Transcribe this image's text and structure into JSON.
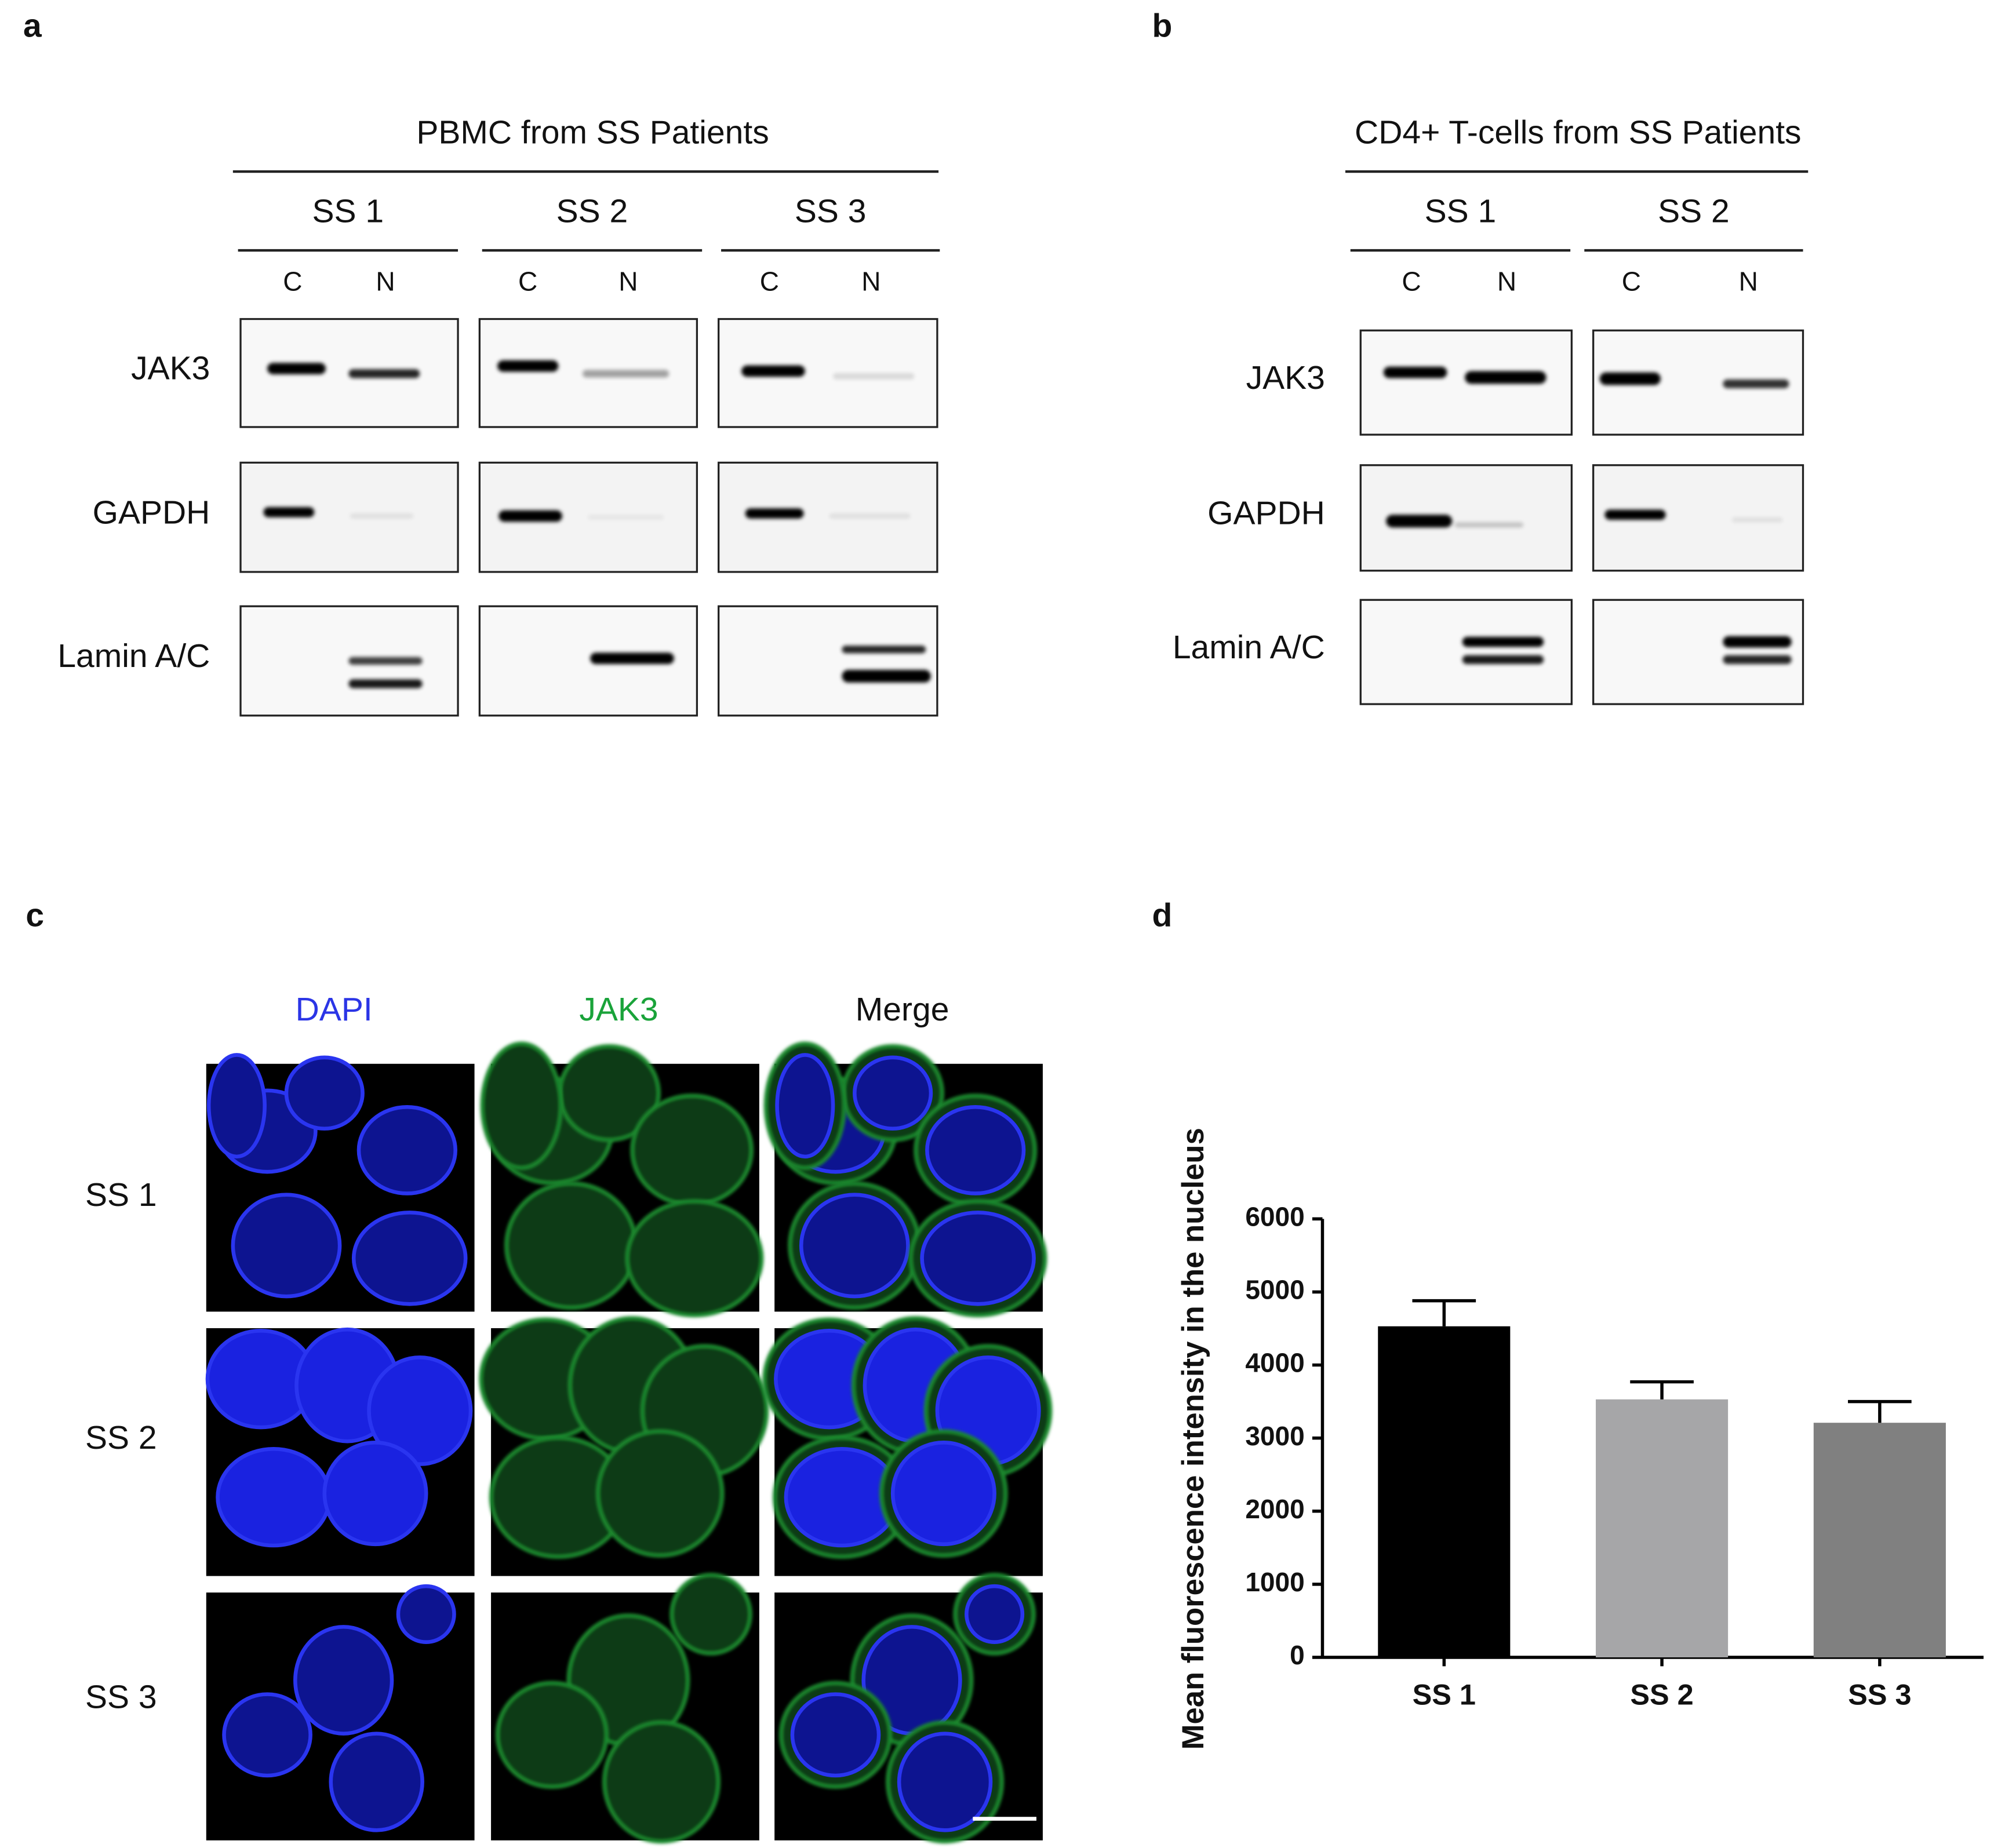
{
  "panel_labels": [
    "a",
    "b",
    "c",
    "d"
  ],
  "panel_a": {
    "title": "PBMC from SS Patients",
    "groups": [
      "SS 1",
      "SS 2",
      "SS 3"
    ],
    "lanes": [
      "C",
      "N"
    ],
    "rows": [
      "JAK3",
      "GAPDH",
      "Lamin A/C"
    ]
  },
  "panel_b": {
    "title": "CD4+ T-cells from SS Patients",
    "groups": [
      "SS 1",
      "SS 2"
    ],
    "lanes": [
      "C",
      "N"
    ],
    "rows": [
      "JAK3",
      "GAPDH",
      "Lamin A/C"
    ]
  },
  "panel_c": {
    "columns": [
      "DAPI",
      "JAK3",
      "Merge"
    ],
    "rows": [
      "SS 1",
      "SS 2",
      "SS 3"
    ]
  },
  "chart_data": {
    "type": "bar",
    "ylabel": "Mean fluorescence intensity in the nucleus",
    "categories": [
      "SS 1",
      "SS 2",
      "SS 3"
    ],
    "values": [
      4530,
      3530,
      3210
    ],
    "errors": [
      350,
      240,
      290
    ],
    "colors": [
      "#000000",
      "#a6a6a8",
      "#808080"
    ],
    "ylim": [
      0,
      6000
    ],
    "yticks": [
      0,
      1000,
      2000,
      3000,
      4000,
      5000,
      6000
    ]
  }
}
